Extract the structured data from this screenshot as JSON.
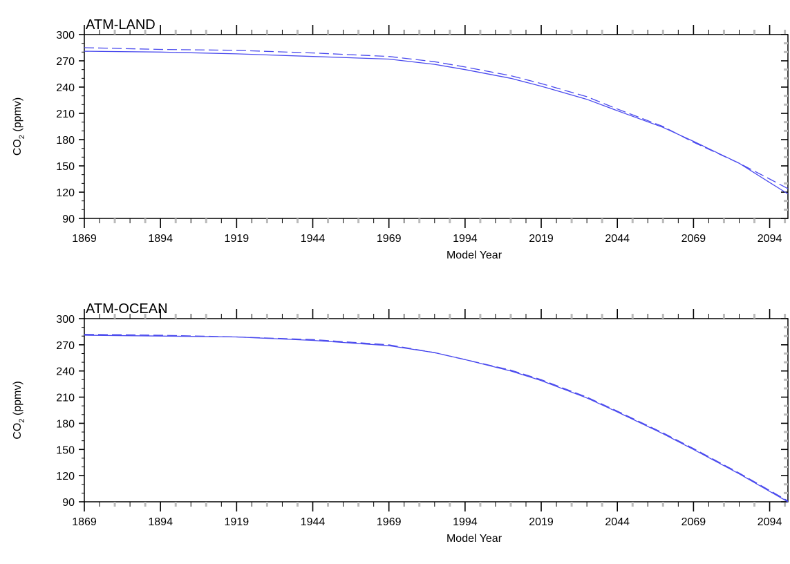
{
  "chart_data": [
    {
      "type": "line",
      "title": "ATM-LAND",
      "xlabel": "Model Year",
      "ylabel_main": "CO",
      "ylabel_sub": "2",
      "ylabel_unit": " (ppmv)",
      "xlim": [
        1869,
        2100
      ],
      "ylim": [
        90,
        300
      ],
      "xticks": [
        1869,
        1894,
        1919,
        1944,
        1969,
        1994,
        2019,
        2044,
        2069,
        2094
      ],
      "yticks": [
        90,
        120,
        150,
        180,
        210,
        240,
        270,
        300
      ],
      "grid": false,
      "colors": {
        "series": "#4a4aee"
      },
      "series": [
        {
          "style": "solid",
          "x": [
            1869,
            1894,
            1919,
            1944,
            1969,
            1984,
            1994,
            2009,
            2019,
            2034,
            2044,
            2059,
            2069,
            2084,
            2094,
            2100
          ],
          "y": [
            281,
            280,
            278,
            275,
            272,
            266,
            260,
            250,
            241,
            226,
            213,
            194,
            178,
            153,
            131,
            118
          ]
        },
        {
          "style": "dashed",
          "x": [
            1869,
            1894,
            1919,
            1944,
            1969,
            1984,
            1994,
            2009,
            2019,
            2034,
            2044,
            2059,
            2069,
            2084,
            2094,
            2100
          ],
          "y": [
            285,
            283,
            282,
            279,
            275,
            269,
            263,
            253,
            244,
            229,
            215,
            195,
            177,
            153,
            135,
            124
          ]
        }
      ]
    },
    {
      "type": "line",
      "title": "ATM-OCEAN",
      "xlabel": "Model Year",
      "ylabel_main": "CO",
      "ylabel_sub": "2",
      "ylabel_unit": " (ppmv)",
      "xlim": [
        1869,
        2100
      ],
      "ylim": [
        90,
        300
      ],
      "xticks": [
        1869,
        1894,
        1919,
        1944,
        1969,
        1994,
        2019,
        2044,
        2069,
        2094
      ],
      "yticks": [
        90,
        120,
        150,
        180,
        210,
        240,
        270,
        300
      ],
      "grid": false,
      "colors": {
        "series": "#4a4aee"
      },
      "series": [
        {
          "style": "solid",
          "x": [
            1869,
            1894,
            1919,
            1944,
            1969,
            1984,
            1994,
            2009,
            2019,
            2034,
            2044,
            2059,
            2069,
            2084,
            2094,
            2100
          ],
          "y": [
            281,
            280,
            279,
            275,
            269,
            261,
            253,
            240,
            229,
            209,
            193,
            168,
            150,
            122,
            102,
            90
          ]
        },
        {
          "style": "dashed",
          "x": [
            1869,
            1894,
            1919,
            1944,
            1969,
            1984,
            1994,
            2009,
            2019,
            2034,
            2044,
            2059,
            2069,
            2084,
            2094,
            2100
          ],
          "y": [
            282,
            281,
            279,
            276,
            270,
            261,
            253,
            241,
            230,
            210,
            194,
            169,
            151,
            123,
            103,
            91
          ]
        }
      ]
    }
  ]
}
